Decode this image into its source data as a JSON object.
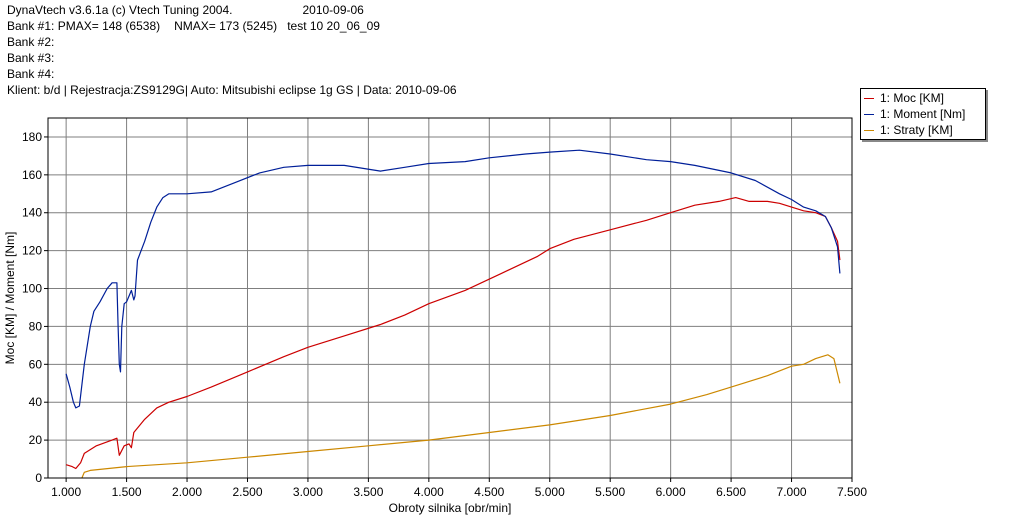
{
  "header": {
    "app": "DynaVtech v3.6.1a (c) Vtech Tuning 2004.",
    "date": "2010-09-06",
    "bank1_label": "Bank #1:",
    "bank1_pmax": "PMAX= 148 (6538)",
    "bank1_nmax": "NMAX= 173 (5245)",
    "bank1_test": "test 10 20_06_09",
    "bank2": "Bank #2:",
    "bank3": "Bank #3:",
    "bank4": "Bank #4:",
    "client": "Klient: b/d | Rejestracja:ZS9129G| Auto: Mitsubishi eclipse 1g GS | Data: 2010-09-06"
  },
  "chart_data": {
    "type": "line",
    "xlabel": "Obroty silnika [obr/min]",
    "ylabel": "Moc [KM] / Moment [Nm]",
    "xlim": [
      850,
      7500
    ],
    "ylim": [
      0,
      190
    ],
    "x_ticks": [
      1000,
      1500,
      2000,
      2500,
      3000,
      3500,
      4000,
      4500,
      5000,
      5500,
      6000,
      6500,
      7000,
      7500
    ],
    "x_tick_labels": [
      "1.000",
      "1.500",
      "2.000",
      "2.500",
      "3.000",
      "3.500",
      "4.000",
      "4.500",
      "5.000",
      "5.500",
      "6.000",
      "6.500",
      "7.000",
      "7.500"
    ],
    "y_ticks": [
      0,
      20,
      40,
      60,
      80,
      100,
      120,
      140,
      160,
      180
    ],
    "y_tick_labels": [
      "0",
      "20",
      "40",
      "60",
      "80",
      "100",
      "120",
      "140",
      "160",
      "180"
    ],
    "grid": true,
    "legend_position": "top-right",
    "series": [
      {
        "name": "1: Moc [KM]",
        "color": "#cc0000",
        "points": [
          [
            1000,
            7
          ],
          [
            1050,
            6
          ],
          [
            1080,
            5
          ],
          [
            1120,
            8
          ],
          [
            1150,
            13
          ],
          [
            1250,
            17
          ],
          [
            1380,
            20
          ],
          [
            1420,
            21
          ],
          [
            1440,
            12
          ],
          [
            1480,
            17
          ],
          [
            1520,
            18
          ],
          [
            1540,
            16
          ],
          [
            1560,
            24
          ],
          [
            1650,
            31
          ],
          [
            1750,
            37
          ],
          [
            1850,
            40
          ],
          [
            2000,
            43
          ],
          [
            2200,
            48
          ],
          [
            2500,
            56
          ],
          [
            2800,
            64
          ],
          [
            3000,
            69
          ],
          [
            3300,
            75
          ],
          [
            3600,
            81
          ],
          [
            3800,
            86
          ],
          [
            4000,
            92
          ],
          [
            4300,
            99
          ],
          [
            4600,
            108
          ],
          [
            4900,
            117
          ],
          [
            5000,
            121
          ],
          [
            5200,
            126
          ],
          [
            5500,
            131
          ],
          [
            5800,
            136
          ],
          [
            6000,
            140
          ],
          [
            6200,
            144
          ],
          [
            6400,
            146
          ],
          [
            6538,
            148
          ],
          [
            6650,
            146
          ],
          [
            6800,
            146
          ],
          [
            6900,
            145
          ],
          [
            7000,
            143
          ],
          [
            7100,
            141
          ],
          [
            7200,
            140
          ],
          [
            7280,
            138
          ],
          [
            7330,
            132
          ],
          [
            7380,
            125
          ],
          [
            7400,
            115
          ]
        ]
      },
      {
        "name": "1: Moment [Nm]",
        "color": "#001f99",
        "points": [
          [
            1000,
            55
          ],
          [
            1030,
            48
          ],
          [
            1060,
            40
          ],
          [
            1080,
            37
          ],
          [
            1110,
            38
          ],
          [
            1150,
            60
          ],
          [
            1200,
            80
          ],
          [
            1230,
            88
          ],
          [
            1280,
            93
          ],
          [
            1340,
            100
          ],
          [
            1380,
            103
          ],
          [
            1420,
            103
          ],
          [
            1430,
            80
          ],
          [
            1440,
            60
          ],
          [
            1450,
            56
          ],
          [
            1460,
            80
          ],
          [
            1480,
            92
          ],
          [
            1500,
            93
          ],
          [
            1520,
            96
          ],
          [
            1540,
            99
          ],
          [
            1560,
            94
          ],
          [
            1570,
            96
          ],
          [
            1590,
            115
          ],
          [
            1650,
            125
          ],
          [
            1700,
            135
          ],
          [
            1750,
            143
          ],
          [
            1800,
            148
          ],
          [
            1850,
            150
          ],
          [
            2000,
            150
          ],
          [
            2200,
            151
          ],
          [
            2400,
            156
          ],
          [
            2600,
            161
          ],
          [
            2800,
            164
          ],
          [
            3000,
            165
          ],
          [
            3300,
            165
          ],
          [
            3600,
            162
          ],
          [
            3800,
            164
          ],
          [
            4000,
            166
          ],
          [
            4300,
            167
          ],
          [
            4500,
            169
          ],
          [
            4800,
            171
          ],
          [
            5000,
            172
          ],
          [
            5245,
            173
          ],
          [
            5500,
            171
          ],
          [
            5800,
            168
          ],
          [
            6000,
            167
          ],
          [
            6200,
            165
          ],
          [
            6500,
            161
          ],
          [
            6700,
            157
          ],
          [
            6900,
            150
          ],
          [
            7000,
            147
          ],
          [
            7100,
            143
          ],
          [
            7200,
            141
          ],
          [
            7280,
            138
          ],
          [
            7330,
            132
          ],
          [
            7380,
            122
          ],
          [
            7400,
            108
          ]
        ]
      },
      {
        "name": "1: Straty [KM]",
        "color": "#cc8800",
        "points": [
          [
            1130,
            0
          ],
          [
            1150,
            3
          ],
          [
            1200,
            4
          ],
          [
            1500,
            6
          ],
          [
            2000,
            8
          ],
          [
            2500,
            11
          ],
          [
            3000,
            14
          ],
          [
            3500,
            17
          ],
          [
            4000,
            20
          ],
          [
            4500,
            24
          ],
          [
            5000,
            28
          ],
          [
            5500,
            33
          ],
          [
            6000,
            39
          ],
          [
            6300,
            44
          ],
          [
            6600,
            50
          ],
          [
            6800,
            54
          ],
          [
            7000,
            59
          ],
          [
            7100,
            60
          ],
          [
            7200,
            63
          ],
          [
            7300,
            65
          ],
          [
            7350,
            63
          ],
          [
            7400,
            50
          ]
        ]
      }
    ]
  }
}
